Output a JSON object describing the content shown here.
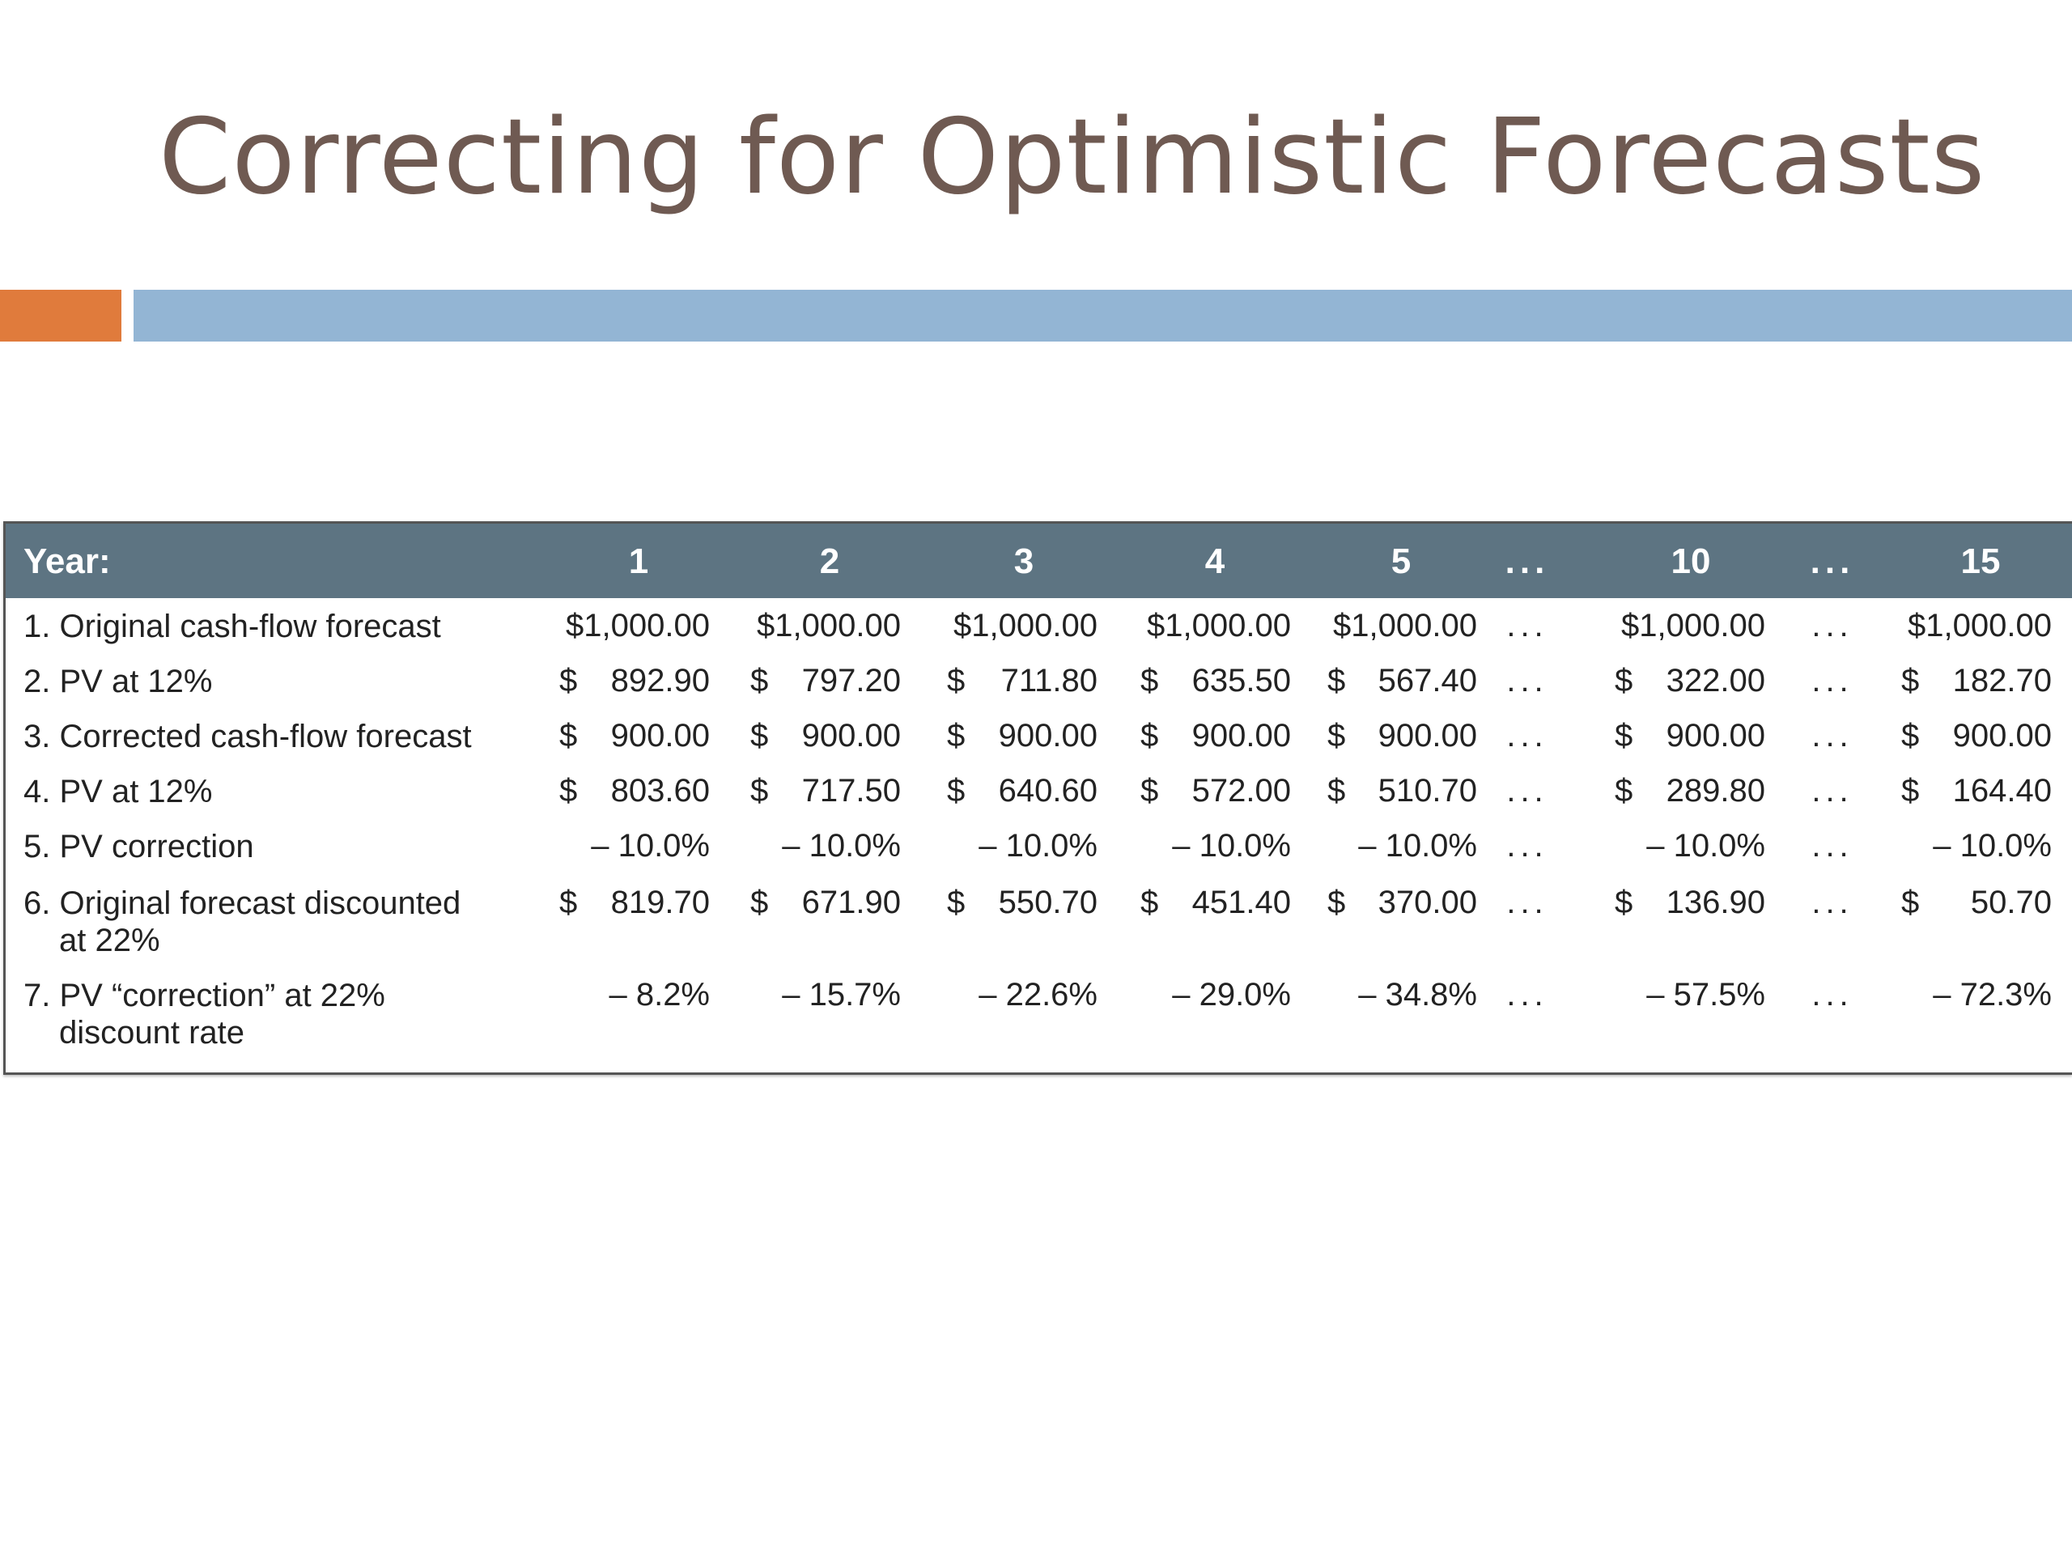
{
  "slide": {
    "title": "Correcting for Optimistic Forecasts",
    "accent_colors": {
      "orange": "#e07b3c",
      "blue": "#93b5d4",
      "header": "#5d7482"
    }
  },
  "table": {
    "header_label": "Year:",
    "columns": [
      "1",
      "2",
      "3",
      "4",
      "5",
      "...",
      "10",
      "...",
      "15"
    ],
    "ellipsis": "...",
    "rows": [
      {
        "label": "1. Original cash-flow forecast",
        "cells": [
          {
            "dollar": "",
            "value": "$1,000.00"
          },
          {
            "dollar": "",
            "value": "$1,000.00"
          },
          {
            "dollar": "",
            "value": "$1,000.00"
          },
          {
            "dollar": "",
            "value": "$1,000.00"
          },
          {
            "dollar": "",
            "value": "$1,000.00"
          },
          {
            "dollar": "",
            "value": "$1,000.00"
          },
          {
            "dollar": "",
            "value": "$1,000.00"
          }
        ]
      },
      {
        "label": "2. PV at 12%",
        "cells": [
          {
            "dollar": "$",
            "value": "892.90"
          },
          {
            "dollar": "$",
            "value": "797.20"
          },
          {
            "dollar": "$",
            "value": "711.80"
          },
          {
            "dollar": "$",
            "value": "635.50"
          },
          {
            "dollar": "$",
            "value": "567.40"
          },
          {
            "dollar": "$",
            "value": "322.00"
          },
          {
            "dollar": "$",
            "value": "182.70"
          }
        ]
      },
      {
        "label": "3. Corrected cash-flow forecast",
        "cells": [
          {
            "dollar": "$",
            "value": "900.00"
          },
          {
            "dollar": "$",
            "value": "900.00"
          },
          {
            "dollar": "$",
            "value": "900.00"
          },
          {
            "dollar": "$",
            "value": "900.00"
          },
          {
            "dollar": "$",
            "value": "900.00"
          },
          {
            "dollar": "$",
            "value": "900.00"
          },
          {
            "dollar": "$",
            "value": "900.00"
          }
        ]
      },
      {
        "label": "4. PV at 12%",
        "cells": [
          {
            "dollar": "$",
            "value": "803.60"
          },
          {
            "dollar": "$",
            "value": "717.50"
          },
          {
            "dollar": "$",
            "value": "640.60"
          },
          {
            "dollar": "$",
            "value": "572.00"
          },
          {
            "dollar": "$",
            "value": "510.70"
          },
          {
            "dollar": "$",
            "value": "289.80"
          },
          {
            "dollar": "$",
            "value": "164.40"
          }
        ]
      },
      {
        "label": "5. PV correction",
        "cells": [
          {
            "dollar": "",
            "value": "– 10.0%"
          },
          {
            "dollar": "",
            "value": "– 10.0%"
          },
          {
            "dollar": "",
            "value": "– 10.0%"
          },
          {
            "dollar": "",
            "value": "– 10.0%"
          },
          {
            "dollar": "",
            "value": "– 10.0%"
          },
          {
            "dollar": "",
            "value": "– 10.0%"
          },
          {
            "dollar": "",
            "value": "– 10.0%"
          }
        ]
      },
      {
        "label": "6. Original forecast discounted",
        "label_cont": "at 22%",
        "cells": [
          {
            "dollar": "$",
            "value": "819.70"
          },
          {
            "dollar": "$",
            "value": "671.90"
          },
          {
            "dollar": "$",
            "value": "550.70"
          },
          {
            "dollar": "$",
            "value": "451.40"
          },
          {
            "dollar": "$",
            "value": "370.00"
          },
          {
            "dollar": "$",
            "value": "136.90"
          },
          {
            "dollar": "$",
            "value": "50.70"
          }
        ]
      },
      {
        "label": "7. PV “correction” at 22%",
        "label_cont": "discount rate",
        "cells": [
          {
            "dollar": "",
            "value": "– 8.2%"
          },
          {
            "dollar": "",
            "value": "– 15.7%"
          },
          {
            "dollar": "",
            "value": "– 22.6%"
          },
          {
            "dollar": "",
            "value": "– 29.0%"
          },
          {
            "dollar": "",
            "value": "– 34.8%"
          },
          {
            "dollar": "",
            "value": "– 57.5%"
          },
          {
            "dollar": "",
            "value": "– 72.3%"
          }
        ]
      }
    ]
  }
}
